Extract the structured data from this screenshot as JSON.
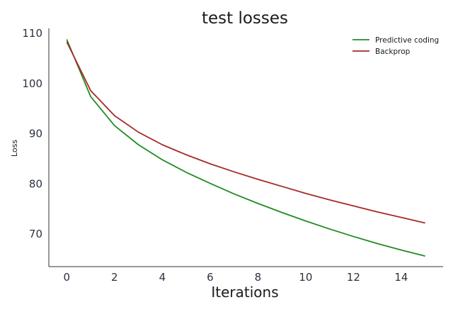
{
  "chart_data": {
    "type": "line",
    "title": "test losses",
    "xlabel": "Iterations",
    "ylabel": "Loss",
    "xlim": [
      -0.75,
      15.75
    ],
    "ylim": [
      63.5,
      111
    ],
    "xticks": [
      0,
      2,
      4,
      6,
      8,
      10,
      12,
      14
    ],
    "yticks": [
      70,
      80,
      90,
      100,
      110
    ],
    "grid": false,
    "legend_position": "top-right",
    "x": [
      0,
      1,
      2,
      3,
      4,
      5,
      6,
      7,
      8,
      9,
      10,
      11,
      12,
      13,
      14,
      15
    ],
    "series": [
      {
        "name": "Predictive coding",
        "color": "#228b22",
        "values": [
          108.8,
          97.4,
          91.6,
          87.8,
          84.8,
          82.3,
          80.1,
          78.0,
          76.1,
          74.3,
          72.6,
          71.0,
          69.5,
          68.1,
          66.8,
          65.6
        ]
      },
      {
        "name": "Backprop",
        "color": "#a52a2a",
        "values": [
          108.3,
          98.6,
          93.6,
          90.3,
          87.8,
          85.8,
          84.0,
          82.4,
          80.9,
          79.5,
          78.1,
          76.8,
          75.6,
          74.4,
          73.3,
          72.2
        ]
      }
    ]
  }
}
